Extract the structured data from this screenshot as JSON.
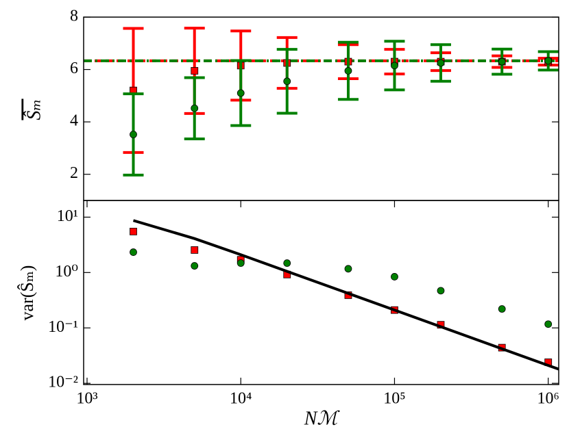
{
  "chart_data": [
    {
      "type": "errorbar",
      "ylabel": "Ŝₘ",
      "x": [
        2000,
        5000,
        10000,
        20000,
        50000,
        100000,
        200000,
        500000,
        1000000
      ],
      "xlim": [
        950,
        1170000
      ],
      "xscale": "log",
      "ylim": [
        1,
        8
      ],
      "yticks": [
        2,
        4,
        6,
        8
      ],
      "series": [
        {
          "color": "#ff0000",
          "marker": "square",
          "values": [
            5.2,
            5.95,
            6.15,
            6.25,
            6.3,
            6.3,
            6.3,
            6.3,
            6.3
          ],
          "errors": [
            2.37,
            1.63,
            1.32,
            0.97,
            0.65,
            0.47,
            0.34,
            0.22,
            0.13
          ]
        },
        {
          "color": "#008000",
          "marker": "circle",
          "values": [
            3.52,
            4.52,
            5.1,
            5.55,
            5.95,
            6.15,
            6.25,
            6.3,
            6.33
          ],
          "errors": [
            1.55,
            1.17,
            1.24,
            1.22,
            1.09,
            0.93,
            0.7,
            0.48,
            0.35
          ]
        }
      ],
      "hlines": [
        {
          "value": 6.33,
          "color": "#ff0000",
          "style": "dashed"
        },
        {
          "value": 6.33,
          "color": "#008000",
          "style": "dashdot"
        }
      ]
    },
    {
      "type": "scatter",
      "ylabel": "var(Ŝₘ)",
      "xlabel": "Nℳ",
      "x": [
        2000,
        5000,
        10000,
        20000,
        50000,
        100000,
        200000,
        500000,
        1000000
      ],
      "xlim": [
        950,
        1170000
      ],
      "xscale": "log",
      "xticks": [
        {
          "value": 1000,
          "label": "10³"
        },
        {
          "value": 10000,
          "label": "10⁴"
        },
        {
          "value": 100000,
          "label": "10⁵"
        },
        {
          "value": 1000000,
          "label": "10⁶"
        }
      ],
      "ylim": [
        0.0095,
        20
      ],
      "yscale": "log",
      "yticks": [
        {
          "value": 0.01,
          "label": "10⁻²"
        },
        {
          "value": 0.1,
          "label": "10⁻¹"
        },
        {
          "value": 1,
          "label": "10⁰"
        },
        {
          "value": 10,
          "label": "10¹"
        }
      ],
      "series": [
        {
          "color": "#ff0000",
          "marker": "square",
          "values": [
            5.5,
            2.55,
            1.7,
            0.92,
            0.39,
            0.21,
            0.114,
            0.044,
            0.024
          ]
        },
        {
          "color": "#008000",
          "marker": "circle",
          "values": [
            2.33,
            1.32,
            1.48,
            1.48,
            1.17,
            0.84,
            0.47,
            0.22,
            0.117
          ]
        },
        {
          "color": "#000000",
          "marker": "line",
          "x": [
            2000,
            5000,
            10000,
            20000,
            50000,
            100000,
            200000,
            500000,
            1000000,
            1170000
          ],
          "values": [
            8.7,
            4.1,
            2.1,
            1.05,
            0.42,
            0.21,
            0.105,
            0.042,
            0.021,
            0.018
          ]
        }
      ]
    }
  ]
}
